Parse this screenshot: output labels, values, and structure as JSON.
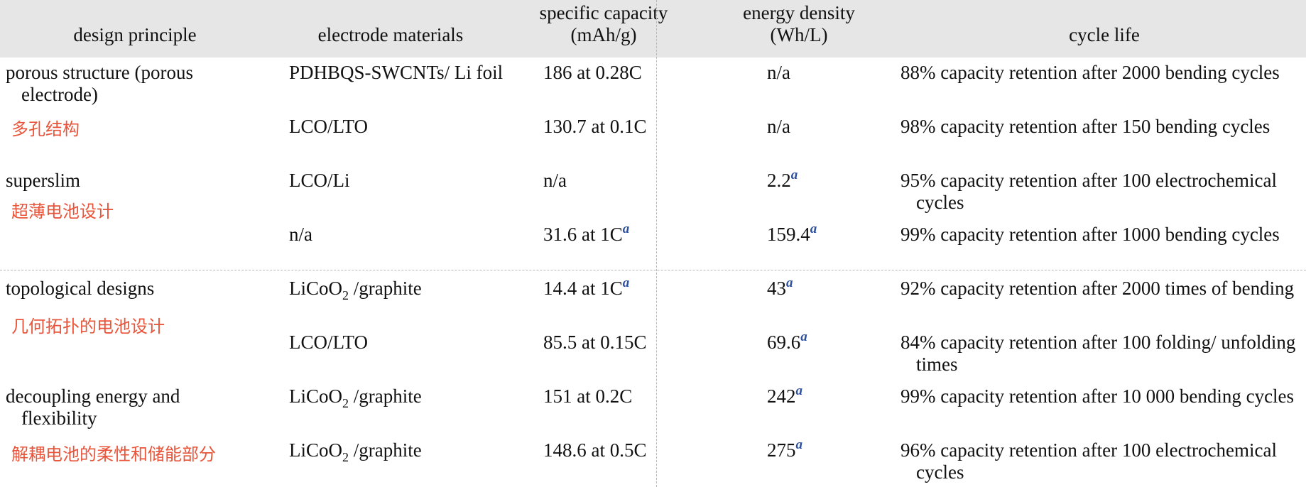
{
  "headers": {
    "design_principle": "design principle",
    "electrode_materials": "electrode materials",
    "specific_capacity_1": "specific capacity",
    "specific_capacity_2": "(mAh/g)",
    "energy_density_1": "energy density",
    "energy_density_2": "(Wh/L)",
    "cycle_life": "cycle life"
  },
  "footnote_mark": "a",
  "rows": [
    {
      "principle": "porous structure (porous electrode)",
      "principle_cn": "多孔结构",
      "electrode": "PDHBQS-SWCNTs/ Li foil",
      "capacity": "186 at 0.28C",
      "density": "n/a",
      "cycle": "88% capacity retention after 2000 bending cycles"
    },
    {
      "electrode": "LCO/LTO",
      "capacity": "130.7 at 0.1C",
      "density": "n/a",
      "cycle": "98% capacity retention after 150 bending cycles"
    },
    {
      "principle": "superslim",
      "principle_cn": "超薄电池设计",
      "electrode": "LCO/Li",
      "capacity": "n/a",
      "density": "2.2",
      "cycle": "95% capacity retention after 100 electrochemical cycles"
    },
    {
      "electrode": "n/a",
      "capacity": "31.6 at 1C",
      "density": "159.4",
      "cycle": "99% capacity retention after 1000 bending cycles"
    },
    {
      "principle": "topological designs",
      "principle_cn": "几何拓扑的电池设计",
      "electrode_main": "LiCoO",
      "electrode_sub": "2",
      "electrode_rest": " /graphite",
      "capacity": "14.4 at 1C",
      "density": "43",
      "cycle": "92% capacity retention after 2000 times of bending"
    },
    {
      "electrode": "LCO/LTO",
      "capacity": "85.5 at 0.15C",
      "density": "69.6",
      "cycle": "84% capacity retention after 100 folding/ unfolding times"
    },
    {
      "principle": "decoupling energy and flexibility",
      "principle_cn": "解耦电池的柔性和储能部分",
      "electrode_main": "LiCoO",
      "electrode_sub": "2",
      "electrode_rest": " /graphite",
      "capacity": "151 at 0.2C",
      "density": "242",
      "cycle": "99% capacity retention after 10 000 bending cycles"
    },
    {
      "electrode_main": "LiCoO",
      "electrode_sub": "2",
      "electrode_rest": " /graphite",
      "capacity": "148.6 at 0.5C",
      "density": "275",
      "cycle": "96% capacity retention after 100 electrochemical cycles"
    }
  ],
  "colors": {
    "header_bg": "#e6e6e6",
    "annotation_red": "#e8553b",
    "footnote_blue": "#2c4f9e"
  }
}
